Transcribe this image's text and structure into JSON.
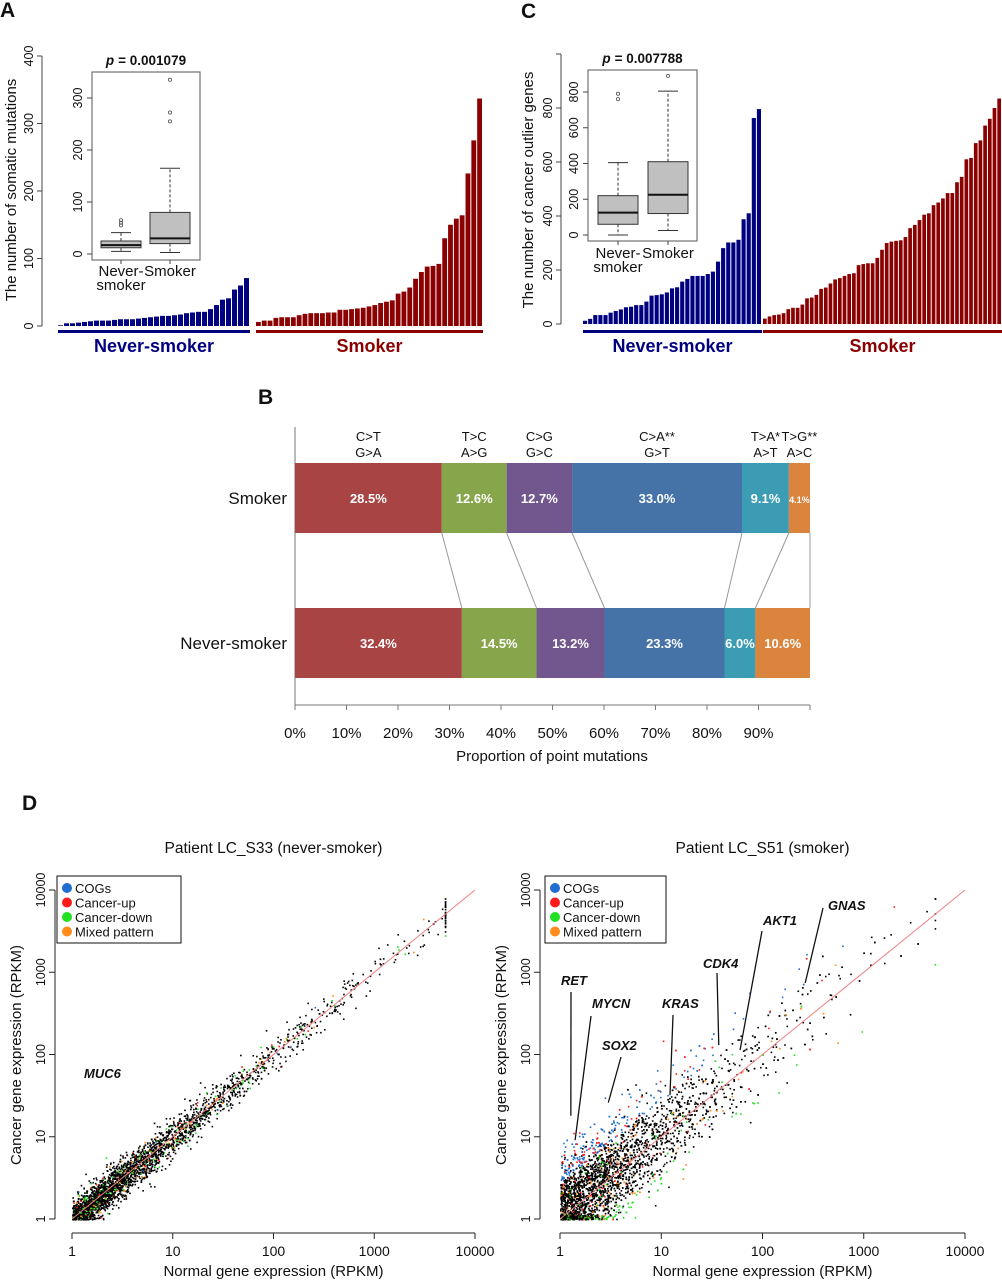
{
  "chart_data": [
    {
      "panel_label": "A",
      "type": "bar",
      "ylabel": "The number of somatic mutations",
      "ylim": [
        0,
        400
      ],
      "yticks": [
        "0",
        "100",
        "200",
        "300",
        "400"
      ],
      "groups": [
        {
          "name": "Never-smoker",
          "color": "#000080",
          "values": [
            1,
            4,
            4,
            5,
            6,
            7,
            8,
            8,
            8,
            9,
            10,
            10,
            10,
            11,
            12,
            13,
            14,
            15,
            15,
            16,
            17,
            19,
            20,
            21,
            21,
            25,
            31,
            39,
            41,
            54,
            60,
            71
          ]
        },
        {
          "name": "Smoker",
          "color": "#8b0000",
          "values": [
            6,
            8,
            8,
            12,
            13,
            13,
            13,
            16,
            18,
            19,
            19,
            19,
            20,
            20,
            24,
            24,
            25,
            26,
            27,
            29,
            31,
            34,
            36,
            38,
            48,
            51,
            57,
            70,
            80,
            88,
            89,
            92,
            130,
            150,
            159,
            164,
            226,
            275,
            337
          ]
        }
      ],
      "inset": {
        "type": "boxplot",
        "p_symbol": "p",
        "p_value": "= 0.001079",
        "ylim": [
          0,
          360
        ],
        "yticks": [
          "0",
          "100",
          "200",
          "300"
        ],
        "categories": [
          [
            "Never-",
            "smoker"
          ],
          [
            "Smoker"
          ]
        ],
        "boxes": [
          {
            "min": 5,
            "q1": 12,
            "median": 17,
            "q3": 25,
            "max": 41,
            "outliers": [
              55,
              60,
              65
            ]
          },
          {
            "min": 3,
            "q1": 20,
            "median": 30,
            "q3": 80,
            "max": 165,
            "outliers": [
              255,
              272,
              335
            ]
          }
        ]
      }
    },
    {
      "panel_label": "C",
      "type": "bar",
      "ylabel": "The number of cancer outlier genes",
      "ylim": [
        0,
        1000
      ],
      "yticks": [
        "0",
        "200",
        "400",
        "600",
        "800"
      ],
      "groups": [
        {
          "name": "Never-smoker",
          "color": "#000080",
          "values": [
            12,
            19,
            33,
            33,
            33,
            42,
            48,
            54,
            62,
            64,
            70,
            70,
            83,
            105,
            107,
            110,
            117,
            132,
            136,
            157,
            167,
            178,
            178,
            178,
            185,
            194,
            231,
            281,
            302,
            302,
            312,
            388,
            410,
            763,
            796
          ]
        },
        {
          "name": "Smoker",
          "color": "#8b0000",
          "values": [
            20,
            28,
            33,
            35,
            40,
            55,
            60,
            60,
            72,
            95,
            98,
            108,
            130,
            135,
            150,
            165,
            170,
            178,
            185,
            188,
            218,
            222,
            225,
            225,
            245,
            275,
            300,
            305,
            308,
            310,
            322,
            355,
            367,
            385,
            405,
            410,
            440,
            450,
            465,
            485,
            485,
            525,
            545,
            610,
            615,
            670,
            680,
            735,
            760,
            800,
            835
          ]
        }
      ],
      "inset": {
        "type": "boxplot",
        "p_symbol": "p",
        "p_value": "= 0.007788",
        "ylim": [
          0,
          950
        ],
        "yticks": [
          "0",
          "200",
          "400",
          "600",
          "800"
        ],
        "categories": [
          [
            "Never-",
            "smoker"
          ],
          [
            "Smoker"
          ]
        ],
        "boxes": [
          {
            "min": 0,
            "q1": 60,
            "median": 125,
            "q3": 220,
            "max": 405,
            "outliers": [
              760,
              790
            ]
          },
          {
            "min": 25,
            "q1": 120,
            "median": 225,
            "q3": 410,
            "max": 805,
            "outliers": [
              890
            ]
          }
        ]
      }
    },
    {
      "panel_label": "B",
      "type": "bar",
      "orientation": "horizontal-stacked",
      "xlabel": "Proportion of point mutations",
      "xlim": [
        0,
        100
      ],
      "xticks": [
        "0%",
        "10%",
        "20%",
        "30%",
        "40%",
        "50%",
        "60%",
        "70%",
        "80%",
        "90%"
      ],
      "categories": [
        "Smoker",
        "Never-smoker"
      ],
      "series": [
        {
          "name": [
            "C>T",
            "G>A"
          ],
          "color": "#a84444",
          "values": [
            28.5,
            32.4
          ],
          "labels": [
            "28.5%",
            "32.4%"
          ]
        },
        {
          "name": [
            "T>C",
            "A>G"
          ],
          "color": "#87a54a",
          "values": [
            12.6,
            14.5
          ],
          "labels": [
            "12.6%",
            "14.5%"
          ]
        },
        {
          "name": [
            "C>G",
            "G>C"
          ],
          "color": "#72578f",
          "values": [
            12.7,
            13.2
          ],
          "labels": [
            "12.7%",
            "13.2%"
          ]
        },
        {
          "name": [
            "C>A**",
            "G>T"
          ],
          "color": "#4572a7",
          "values": [
            33.0,
            23.3
          ],
          "labels": [
            "33.0%",
            "23.3%"
          ]
        },
        {
          "name": [
            "T>A*",
            "A>T"
          ],
          "color": "#3c9cb4",
          "values": [
            9.1,
            6.0
          ],
          "labels": [
            "9.1%",
            "6.0%"
          ]
        },
        {
          "name": [
            "T>G**",
            "A>C"
          ],
          "color": "#db843d",
          "values": [
            4.1,
            10.6
          ],
          "labels": [
            "4.1%",
            "10.6%"
          ]
        }
      ]
    },
    {
      "panel_label": "D",
      "type": "scatter",
      "title": "Patient LC_S33 (never-smoker)",
      "xlabel": "Normal gene expression (RPKM)",
      "ylabel": "Cancer gene expression (RPKM)",
      "xscale": "log",
      "yscale": "log",
      "xlim": [
        1,
        10000
      ],
      "ylim": [
        1,
        10000
      ],
      "xticks": [
        "1",
        "10",
        "100",
        "1000",
        "10000"
      ],
      "yticks": [
        "1",
        "10",
        "100",
        "1000",
        "10000"
      ],
      "diagonal_color": "#f08080",
      "legend": [
        {
          "label": "COGs",
          "color": "#1f6fd0"
        },
        {
          "label": "Cancer-up",
          "color": "#ff1a1a"
        },
        {
          "label": "Cancer-down",
          "color": "#22e022"
        },
        {
          "label": "Mixed pattern",
          "color": "#ff8c1a"
        }
      ],
      "legend_position": "top-left",
      "annotations": [
        {
          "gene": "MUC6",
          "x": 1.17,
          "y": 58
        }
      ]
    },
    {
      "type": "scatter",
      "title": "Patient LC_S51 (smoker)",
      "xlabel": "Normal gene expression (RPKM)",
      "ylabel": "Cancer gene expression (RPKM)",
      "xscale": "log",
      "yscale": "log",
      "xlim": [
        1,
        10000
      ],
      "ylim": [
        1,
        10000
      ],
      "xticks": [
        "1",
        "10",
        "100",
        "1000",
        "10000"
      ],
      "yticks": [
        "1",
        "10",
        "100",
        "1000",
        "10000"
      ],
      "diagonal_color": "#f08080",
      "legend": [
        {
          "label": "COGs",
          "color": "#1f6fd0"
        },
        {
          "label": "Cancer-up",
          "color": "#ff1a1a"
        },
        {
          "label": "Cancer-down",
          "color": "#22e022"
        },
        {
          "label": "Mixed pattern",
          "color": "#ff8c1a"
        }
      ],
      "legend_position": "top-left",
      "annotations": [
        {
          "gene": "RET",
          "x": 1.28,
          "y": 18
        },
        {
          "gene": "MYCN",
          "x": 1.41,
          "y": 9.1
        },
        {
          "gene": "SOX2",
          "x": 3.0,
          "y": 26
        },
        {
          "gene": "KRAS",
          "x": 12.2,
          "y": 32
        },
        {
          "gene": "CDK4",
          "x": 37,
          "y": 130
        },
        {
          "gene": "AKT1",
          "x": 60,
          "y": 113
        },
        {
          "gene": "GNAS",
          "x": 264,
          "y": 740
        }
      ]
    }
  ]
}
